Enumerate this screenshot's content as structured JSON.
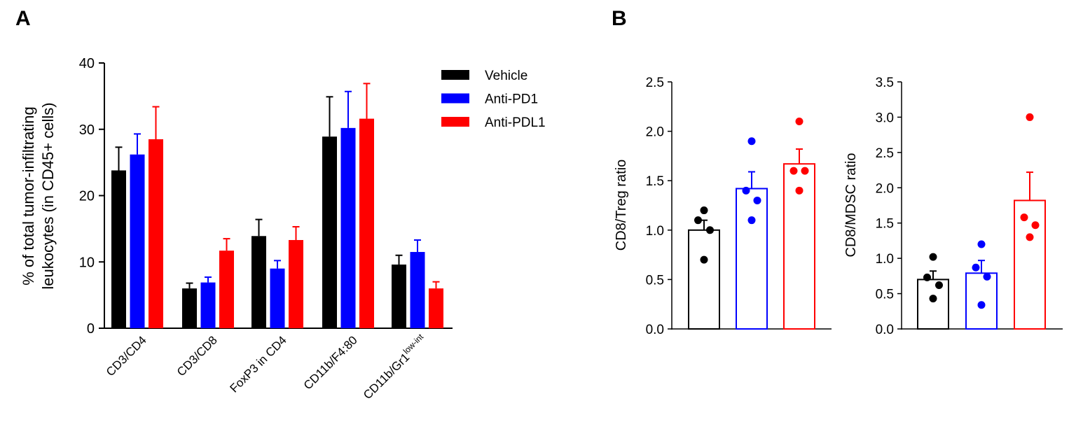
{
  "panel_labels": {
    "a": "A",
    "b": "B"
  },
  "colors": {
    "Vehicle": "#000000",
    "Anti-PD1": "#0000ff",
    "Anti-PDL1": "#ff0000"
  },
  "chart_data": [
    {
      "panel": "A",
      "type": "bar",
      "ylabel_lines": [
        "% of total tumor-infiltrating",
        "leukocytes (in CD45+ cells)"
      ],
      "ylim": [
        0,
        40
      ],
      "yticks": [
        "0",
        "10",
        "20",
        "30",
        "40"
      ],
      "categories": [
        "CD3/CD4",
        "CD3/CD8",
        "FoxP3 in CD4",
        "CD11b/F4:80",
        "CD11b/Gr1"
      ],
      "category_superscript": {
        "CD11b/Gr1": "low-int"
      },
      "legend": "top-right",
      "series": [
        {
          "name": "Vehicle",
          "values": [
            23.8,
            6.0,
            13.9,
            28.9,
            9.6
          ],
          "error_upper": [
            27.3,
            6.8,
            16.4,
            34.9,
            11.0
          ]
        },
        {
          "name": "Anti-PD1",
          "values": [
            26.2,
            6.9,
            9.0,
            30.2,
            11.5
          ],
          "error_upper": [
            29.3,
            7.7,
            10.2,
            35.7,
            13.3
          ]
        },
        {
          "name": "Anti-PDL1",
          "values": [
            28.5,
            11.7,
            13.3,
            31.6,
            6.0
          ],
          "error_upper": [
            33.4,
            13.5,
            15.3,
            36.9,
            7.0
          ]
        }
      ]
    },
    {
      "panel": "B-left",
      "type": "bar",
      "ylabel": "CD8/Treg ratio",
      "ylim": [
        0,
        2.5
      ],
      "yticks": [
        "0.0",
        "0.5",
        "1.0",
        "1.5",
        "2.0",
        "2.5"
      ],
      "groups": [
        "Vehicle",
        "Anti-PD1",
        "Anti-PDL1"
      ],
      "means": [
        1.0,
        1.42,
        1.67
      ],
      "error_upper": [
        1.1,
        1.59,
        1.82
      ],
      "points": [
        [
          1.2,
          1.1,
          1.0,
          0.7
        ],
        [
          1.9,
          1.4,
          1.3,
          1.1
        ],
        [
          2.1,
          1.6,
          1.6,
          1.4
        ]
      ]
    },
    {
      "panel": "B-right",
      "type": "bar",
      "ylabel": "CD8/MDSC ratio",
      "ylim": [
        0,
        3.5
      ],
      "yticks": [
        "0.0",
        "0.5",
        "1.0",
        "1.5",
        "2.0",
        "2.5",
        "3.0",
        "3.5"
      ],
      "groups": [
        "Vehicle",
        "Anti-PD1",
        "Anti-PDL1"
      ],
      "means": [
        0.7,
        0.79,
        1.82
      ],
      "error_upper": [
        0.82,
        0.97,
        2.22
      ],
      "points": [
        [
          1.02,
          0.73,
          0.62,
          0.43
        ],
        [
          1.2,
          0.87,
          0.74,
          0.34
        ],
        [
          3.0,
          1.58,
          1.47,
          1.3
        ]
      ]
    }
  ]
}
